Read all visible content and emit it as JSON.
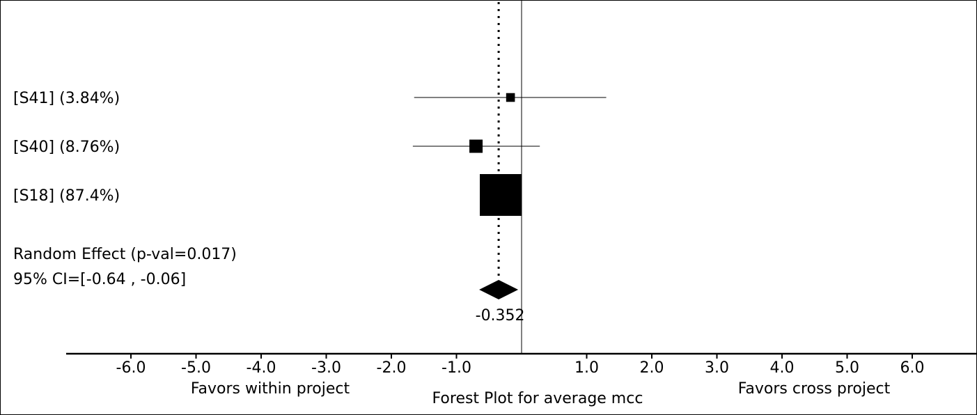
{
  "chart_data": {
    "type": "forest",
    "title": "Forest Plot for average mcc",
    "xlim": [
      -7.0,
      7.0
    ],
    "x_ticks": [
      -6.0,
      -5.0,
      -4.0,
      -3.0,
      -2.0,
      -1.0,
      1.0,
      2.0,
      3.0,
      4.0,
      5.0,
      6.0
    ],
    "x_tick_labels": [
      "-6.0",
      "-5.0",
      "-4.0",
      "-3.0",
      "-2.0",
      "-1.0",
      "1.0",
      "2.0",
      "3.0",
      "4.0",
      "5.0",
      "6.0"
    ],
    "favors_left": "Favors within project",
    "favors_right": "Favors cross project",
    "studies": [
      {
        "label": "[S41] (3.84%)",
        "estimate": -0.17,
        "ci": [
          -1.65,
          1.3
        ],
        "weight": 3.84
      },
      {
        "label": "[S40] (8.76%)",
        "estimate": -0.7,
        "ci": [
          -1.67,
          0.28
        ],
        "weight": 8.76
      },
      {
        "label": "[S18] (87.4%)",
        "estimate": -0.32,
        "ci": [
          -0.32,
          -0.32
        ],
        "weight": 87.4
      }
    ],
    "summary": {
      "label_line1": "Random Effect (p-val=0.017)",
      "label_line2": "95% CI=[-0.64 , -0.06]",
      "estimate": -0.352,
      "estimate_label": "-0.352",
      "ci": [
        -0.64,
        -0.06
      ]
    },
    "reference_line": 0.0
  }
}
